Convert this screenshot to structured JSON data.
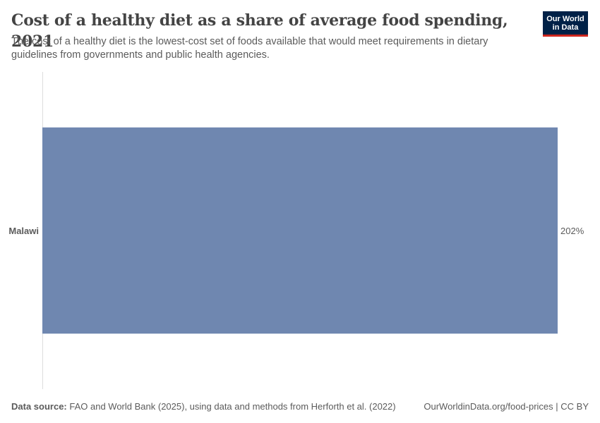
{
  "header": {
    "title": "Cost of a healthy diet as a share of average food spending, 2021",
    "subtitle": "The cost of a healthy diet is the lowest-cost set of foods available that would meet requirements in dietary guidelines from governments and public health agencies.",
    "logo_text": "Our World\nin Data"
  },
  "footer": {
    "source_label": "Data source:",
    "source_text": "FAO and World Bank (2025), using data and methods from Herforth et al. (2022)",
    "right_text": "OurWorldinData.org/food-prices | CC BY"
  },
  "colors": {
    "bar": "#6f87b0",
    "axis": "#dddddd",
    "logo_bg": "#002147",
    "logo_accent": "#ce261e"
  },
  "chart_data": {
    "type": "bar",
    "orientation": "horizontal",
    "categories": [
      "Malawi"
    ],
    "values": [
      202
    ],
    "value_labels": [
      "202%"
    ],
    "unit": "%",
    "xlim": [
      0,
      202
    ],
    "grid": false
  }
}
